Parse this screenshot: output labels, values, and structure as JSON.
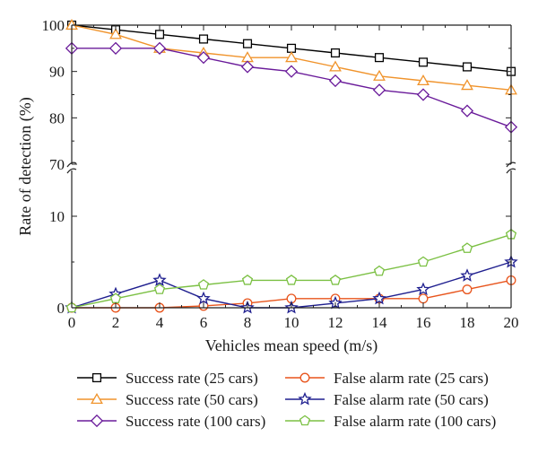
{
  "chart_data": {
    "type": "line",
    "xlabel": "Vehicles mean speed (m/s)",
    "ylabel": "Rate of detection (%)",
    "x": [
      0,
      2,
      4,
      6,
      8,
      10,
      12,
      14,
      16,
      18,
      20
    ],
    "xlim": [
      0,
      20
    ],
    "x_ticks": [
      "0",
      "2",
      "4",
      "6",
      "8",
      "10",
      "12",
      "14",
      "16",
      "18",
      "20"
    ],
    "y_axis_break": true,
    "y_lower_range": [
      0,
      15
    ],
    "y_upper_range": [
      70,
      100
    ],
    "y_ticks": [
      "0",
      "10",
      "70",
      "80",
      "90",
      "100"
    ],
    "grid": false,
    "legend_position": "bottom",
    "series": [
      {
        "name": "Success rate (25 cars)",
        "color": "#000000",
        "marker": "square",
        "values": [
          100,
          99,
          98,
          97,
          96,
          95,
          94,
          93,
          92,
          91,
          90
        ]
      },
      {
        "name": "Success rate (50 cars)",
        "color": "#f0932b",
        "marker": "triangle",
        "values": [
          100,
          98,
          95,
          94,
          93,
          93,
          91,
          89,
          88,
          87,
          86
        ]
      },
      {
        "name": "Success rate (100 cars)",
        "color": "#6a1b9a",
        "marker": "diamond",
        "values": [
          95,
          95,
          95,
          93,
          91,
          90,
          88,
          86,
          85,
          81.5,
          78
        ]
      },
      {
        "name": "False alarm rate (25 cars)",
        "color": "#e8541c",
        "marker": "circle",
        "values": [
          0,
          0,
          0,
          0.2,
          0.5,
          1,
          1,
          1,
          1,
          2,
          3
        ]
      },
      {
        "name": "False alarm rate (50 cars)",
        "color": "#1f1f8f",
        "marker": "star",
        "values": [
          0,
          1.5,
          3,
          1,
          0,
          0,
          0.5,
          1,
          2,
          3.5,
          5
        ]
      },
      {
        "name": "False alarm rate (100 cars)",
        "color": "#7bc043",
        "marker": "pentagon",
        "values": [
          0,
          1,
          2,
          2.5,
          3,
          3,
          3,
          4,
          5,
          6.5,
          8
        ]
      }
    ]
  }
}
